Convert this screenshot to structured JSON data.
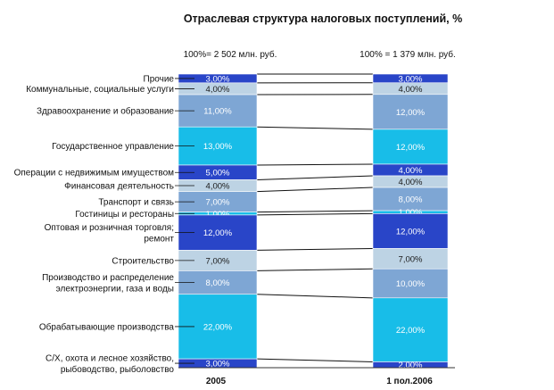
{
  "chart_data": {
    "type": "bar",
    "stacked": true,
    "percent": true,
    "title": "Отраслевая структура налоговых поступлений, %",
    "columns": [
      {
        "label": "2005",
        "total": "100%= 2 502 млн. руб."
      },
      {
        "label": "1 пол.2006",
        "total": "100% = 1 379 млн. руб."
      }
    ],
    "categories": [
      "Прочие",
      "Коммунальные, социальные услуги",
      "Здравоохранение и образование",
      "Государственное управление",
      "Операции с недвижимым имуществом",
      "Финансовая деятельность",
      "Транспорт и связь",
      "Гостиницы и рестораны",
      "Оптовая и розничная торговля; ремонт",
      "Строительство",
      "Производство и распределение электроэнергии, газа и воды",
      "Обрабатывающие производства",
      "С/Х, охота и лесное хозяйство, рыбоводство, рыболовство"
    ],
    "category_lines": [
      [
        "Прочие"
      ],
      [
        "Коммунальные, социальные услуги"
      ],
      [
        "Здравоохранение и образование"
      ],
      [
        "Государственное управление"
      ],
      [
        "Операции с недвижимым имуществом"
      ],
      [
        "Финансовая деятельность"
      ],
      [
        "Транспорт и связь"
      ],
      [
        "Гостиницы и рестораны"
      ],
      [
        "Оптовая и розничная торговля;",
        "ремонт"
      ],
      [
        "Строительство"
      ],
      [
        "Производство и распределение",
        "электроэнергии, газа и воды"
      ],
      [
        "Обрабатывающие производства"
      ],
      [
        "С/Х, охота и лесное хозяйство,",
        "рыбоводство, рыболовство"
      ]
    ],
    "series": [
      {
        "values": [
          3,
          4,
          11,
          13,
          5,
          4,
          7,
          1,
          12,
          7,
          8,
          22,
          3
        ]
      },
      {
        "values": [
          3,
          4,
          12,
          12,
          4,
          4,
          8,
          1,
          12,
          7,
          10,
          22,
          2
        ]
      }
    ],
    "value_labels": [
      [
        "3,00%",
        "4,00%",
        "11,00%",
        "13,00%",
        "5,00%",
        "4,00%",
        "7,00%",
        "1,00%",
        "12,00%",
        "7,00%",
        "8,00%",
        "22,00%",
        "3,00%"
      ],
      [
        "3,00%",
        "4,00%",
        "12,00%",
        "12,00%",
        "4,00%",
        "4,00%",
        "8,00%",
        "1,00%",
        "12,00%",
        "7,00%",
        "10,00%",
        "22,00%",
        "2,00%"
      ]
    ],
    "colors": [
      "#2945c8",
      "#bdd3e4",
      "#7ea6d4",
      "#18bde8",
      "#2945c8",
      "#bdd3e4",
      "#7ea6d4",
      "#18bde8",
      "#2945c8",
      "#bdd3e4",
      "#7ea6d4",
      "#18bde8",
      "#2945c8"
    ],
    "ylim": [
      0,
      100
    ]
  }
}
